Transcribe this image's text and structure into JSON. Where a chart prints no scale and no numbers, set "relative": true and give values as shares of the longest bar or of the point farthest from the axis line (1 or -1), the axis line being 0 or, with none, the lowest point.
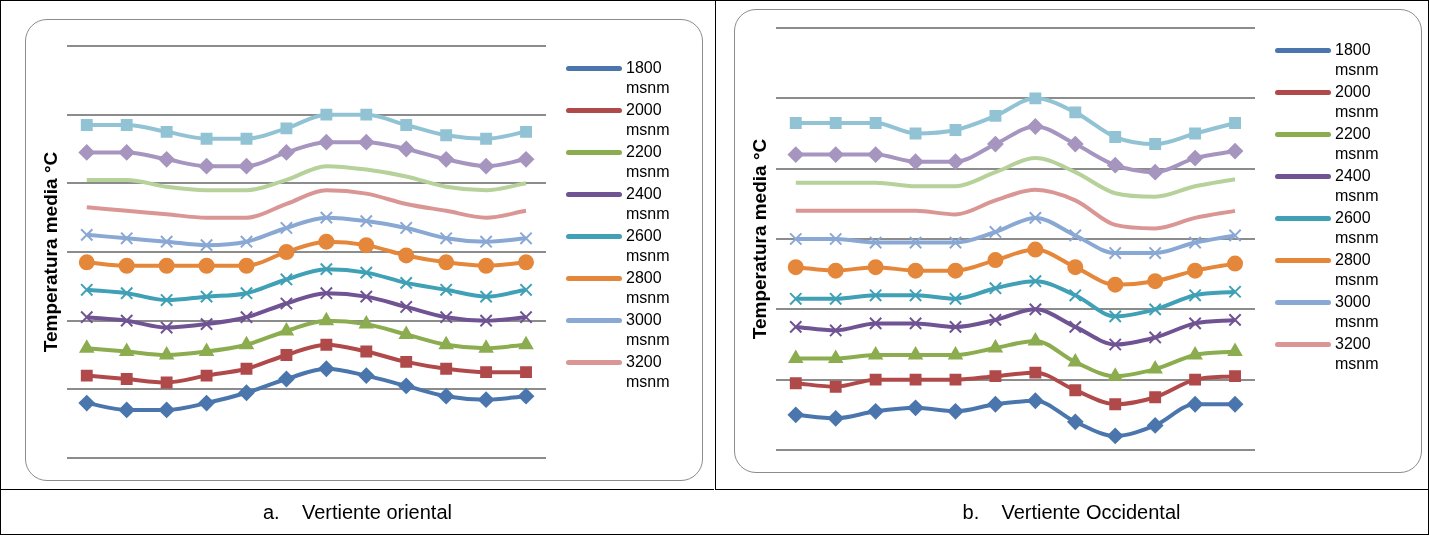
{
  "chart_data": [
    {
      "type": "line",
      "relative": true,
      "ylabel": "Temperatura media °C",
      "grid": "y",
      "legend": "right",
      "annotations": [
        "a.    Vertiente oriental"
      ],
      "categories": [
        null,
        null,
        null,
        null,
        null,
        null,
        null,
        null,
        null,
        null,
        null,
        null
      ],
      "series": [
        {
          "name": "1800 msnm",
          "color": "#4a76ad",
          "marker": "diamond",
          "values": [
            0.16,
            0.14,
            0.14,
            0.16,
            0.19,
            0.23,
            0.26,
            0.24,
            0.21,
            0.18,
            0.17,
            0.18
          ]
        },
        {
          "name": "2000 msnm",
          "color": "#b04a4a",
          "marker": "square",
          "values": [
            0.24,
            0.23,
            0.22,
            0.24,
            0.26,
            0.3,
            0.33,
            0.31,
            0.28,
            0.26,
            0.25,
            0.25
          ]
        },
        {
          "name": "2200 msnm",
          "color": "#8bac4f",
          "marker": "triangle",
          "values": [
            0.32,
            0.31,
            0.3,
            0.31,
            0.33,
            0.37,
            0.4,
            0.39,
            0.36,
            0.33,
            0.32,
            0.33
          ]
        },
        {
          "name": "2400 msnm",
          "color": "#6f5393",
          "marker": "cross",
          "values": [
            0.41,
            0.4,
            0.38,
            0.39,
            0.41,
            0.45,
            0.48,
            0.47,
            0.44,
            0.41,
            0.4,
            0.41
          ]
        },
        {
          "name": "2600 msnm",
          "color": "#3fa0b6",
          "marker": "cross",
          "values": [
            0.49,
            0.48,
            0.46,
            0.47,
            0.48,
            0.52,
            0.55,
            0.54,
            0.51,
            0.49,
            0.47,
            0.49
          ]
        },
        {
          "name": "2800 msnm",
          "color": "#e5873a",
          "marker": "circle",
          "values": [
            0.57,
            0.56,
            0.56,
            0.56,
            0.56,
            0.6,
            0.63,
            0.62,
            0.59,
            0.57,
            0.56,
            0.57
          ]
        },
        {
          "name": "3000 msnm",
          "color": "#8aa8d4",
          "marker": "cross",
          "values": [
            0.65,
            0.64,
            0.63,
            0.62,
            0.63,
            0.67,
            0.7,
            0.69,
            0.67,
            0.64,
            0.63,
            0.64
          ]
        },
        {
          "name": "3200 msnm",
          "color": "#d99694",
          "marker": "none",
          "values": [
            0.73,
            0.72,
            0.71,
            0.7,
            0.7,
            0.74,
            0.78,
            0.77,
            0.74,
            0.72,
            0.7,
            0.72
          ]
        },
        {
          "color": "#b7d19a",
          "marker": "none",
          "values": [
            0.81,
            0.81,
            0.79,
            0.78,
            0.78,
            0.81,
            0.85,
            0.84,
            0.82,
            0.79,
            0.78,
            0.8
          ]
        },
        {
          "color": "#a695bf",
          "marker": "diamond",
          "values": [
            0.89,
            0.89,
            0.87,
            0.85,
            0.85,
            0.89,
            0.92,
            0.92,
            0.9,
            0.87,
            0.85,
            0.87
          ]
        },
        {
          "color": "#92c3d4",
          "marker": "square",
          "values": [
            0.97,
            0.97,
            0.95,
            0.93,
            0.93,
            0.96,
            1.0,
            1.0,
            0.97,
            0.94,
            0.93,
            0.95
          ]
        }
      ]
    },
    {
      "type": "line",
      "relative": true,
      "ylabel": "Temperatura media °C",
      "grid": "y",
      "legend": "right",
      "annotations": [
        "b.    Vertiente Occidental"
      ],
      "categories": [
        null,
        null,
        null,
        null,
        null,
        null,
        null,
        null,
        null,
        null,
        null,
        null
      ],
      "series": [
        {
          "name": "1800 msnm",
          "color": "#4a76ad",
          "marker": "diamond",
          "values": [
            0.1,
            0.09,
            0.11,
            0.12,
            0.11,
            0.13,
            0.14,
            0.08,
            0.04,
            0.07,
            0.13,
            0.13
          ]
        },
        {
          "name": "2000 msnm",
          "color": "#b04a4a",
          "marker": "square",
          "values": [
            0.19,
            0.18,
            0.2,
            0.2,
            0.2,
            0.21,
            0.22,
            0.17,
            0.13,
            0.15,
            0.2,
            0.21
          ]
        },
        {
          "name": "2200 msnm",
          "color": "#8bac4f",
          "marker": "triangle",
          "values": [
            0.26,
            0.26,
            0.27,
            0.27,
            0.27,
            0.29,
            0.31,
            0.25,
            0.21,
            0.23,
            0.27,
            0.28
          ]
        },
        {
          "name": "2400 msnm",
          "color": "#6f5393",
          "marker": "cross",
          "values": [
            0.35,
            0.34,
            0.36,
            0.36,
            0.35,
            0.37,
            0.4,
            0.35,
            0.3,
            0.32,
            0.36,
            0.37
          ]
        },
        {
          "name": "2600 msnm",
          "color": "#3fa0b6",
          "marker": "cross",
          "values": [
            0.43,
            0.43,
            0.44,
            0.44,
            0.43,
            0.46,
            0.48,
            0.44,
            0.38,
            0.4,
            0.44,
            0.45
          ]
        },
        {
          "name": "2800 msnm",
          "color": "#e5873a",
          "marker": "circle",
          "values": [
            0.52,
            0.51,
            0.52,
            0.51,
            0.51,
            0.54,
            0.57,
            0.52,
            0.47,
            0.48,
            0.51,
            0.53
          ]
        },
        {
          "name": "3000 msnm",
          "color": "#8aa8d4",
          "marker": "cross",
          "values": [
            0.6,
            0.6,
            0.59,
            0.59,
            0.59,
            0.62,
            0.66,
            0.61,
            0.56,
            0.56,
            0.59,
            0.61
          ]
        },
        {
          "name": "3200 msnm",
          "color": "#d99694",
          "marker": "none",
          "values": [
            0.68,
            0.68,
            0.68,
            0.68,
            0.67,
            0.71,
            0.74,
            0.71,
            0.64,
            0.63,
            0.66,
            0.68
          ]
        },
        {
          "color": "#b7d19a",
          "marker": "none",
          "values": [
            0.76,
            0.76,
            0.76,
            0.75,
            0.75,
            0.79,
            0.83,
            0.79,
            0.73,
            0.72,
            0.75,
            0.77
          ]
        },
        {
          "color": "#a695bf",
          "marker": "diamond",
          "values": [
            0.84,
            0.84,
            0.84,
            0.82,
            0.82,
            0.87,
            0.92,
            0.87,
            0.81,
            0.79,
            0.83,
            0.85
          ]
        },
        {
          "color": "#92c3d4",
          "marker": "square",
          "values": [
            0.93,
            0.93,
            0.93,
            0.9,
            0.91,
            0.95,
            1.0,
            0.96,
            0.89,
            0.87,
            0.9,
            0.93
          ]
        }
      ]
    }
  ]
}
